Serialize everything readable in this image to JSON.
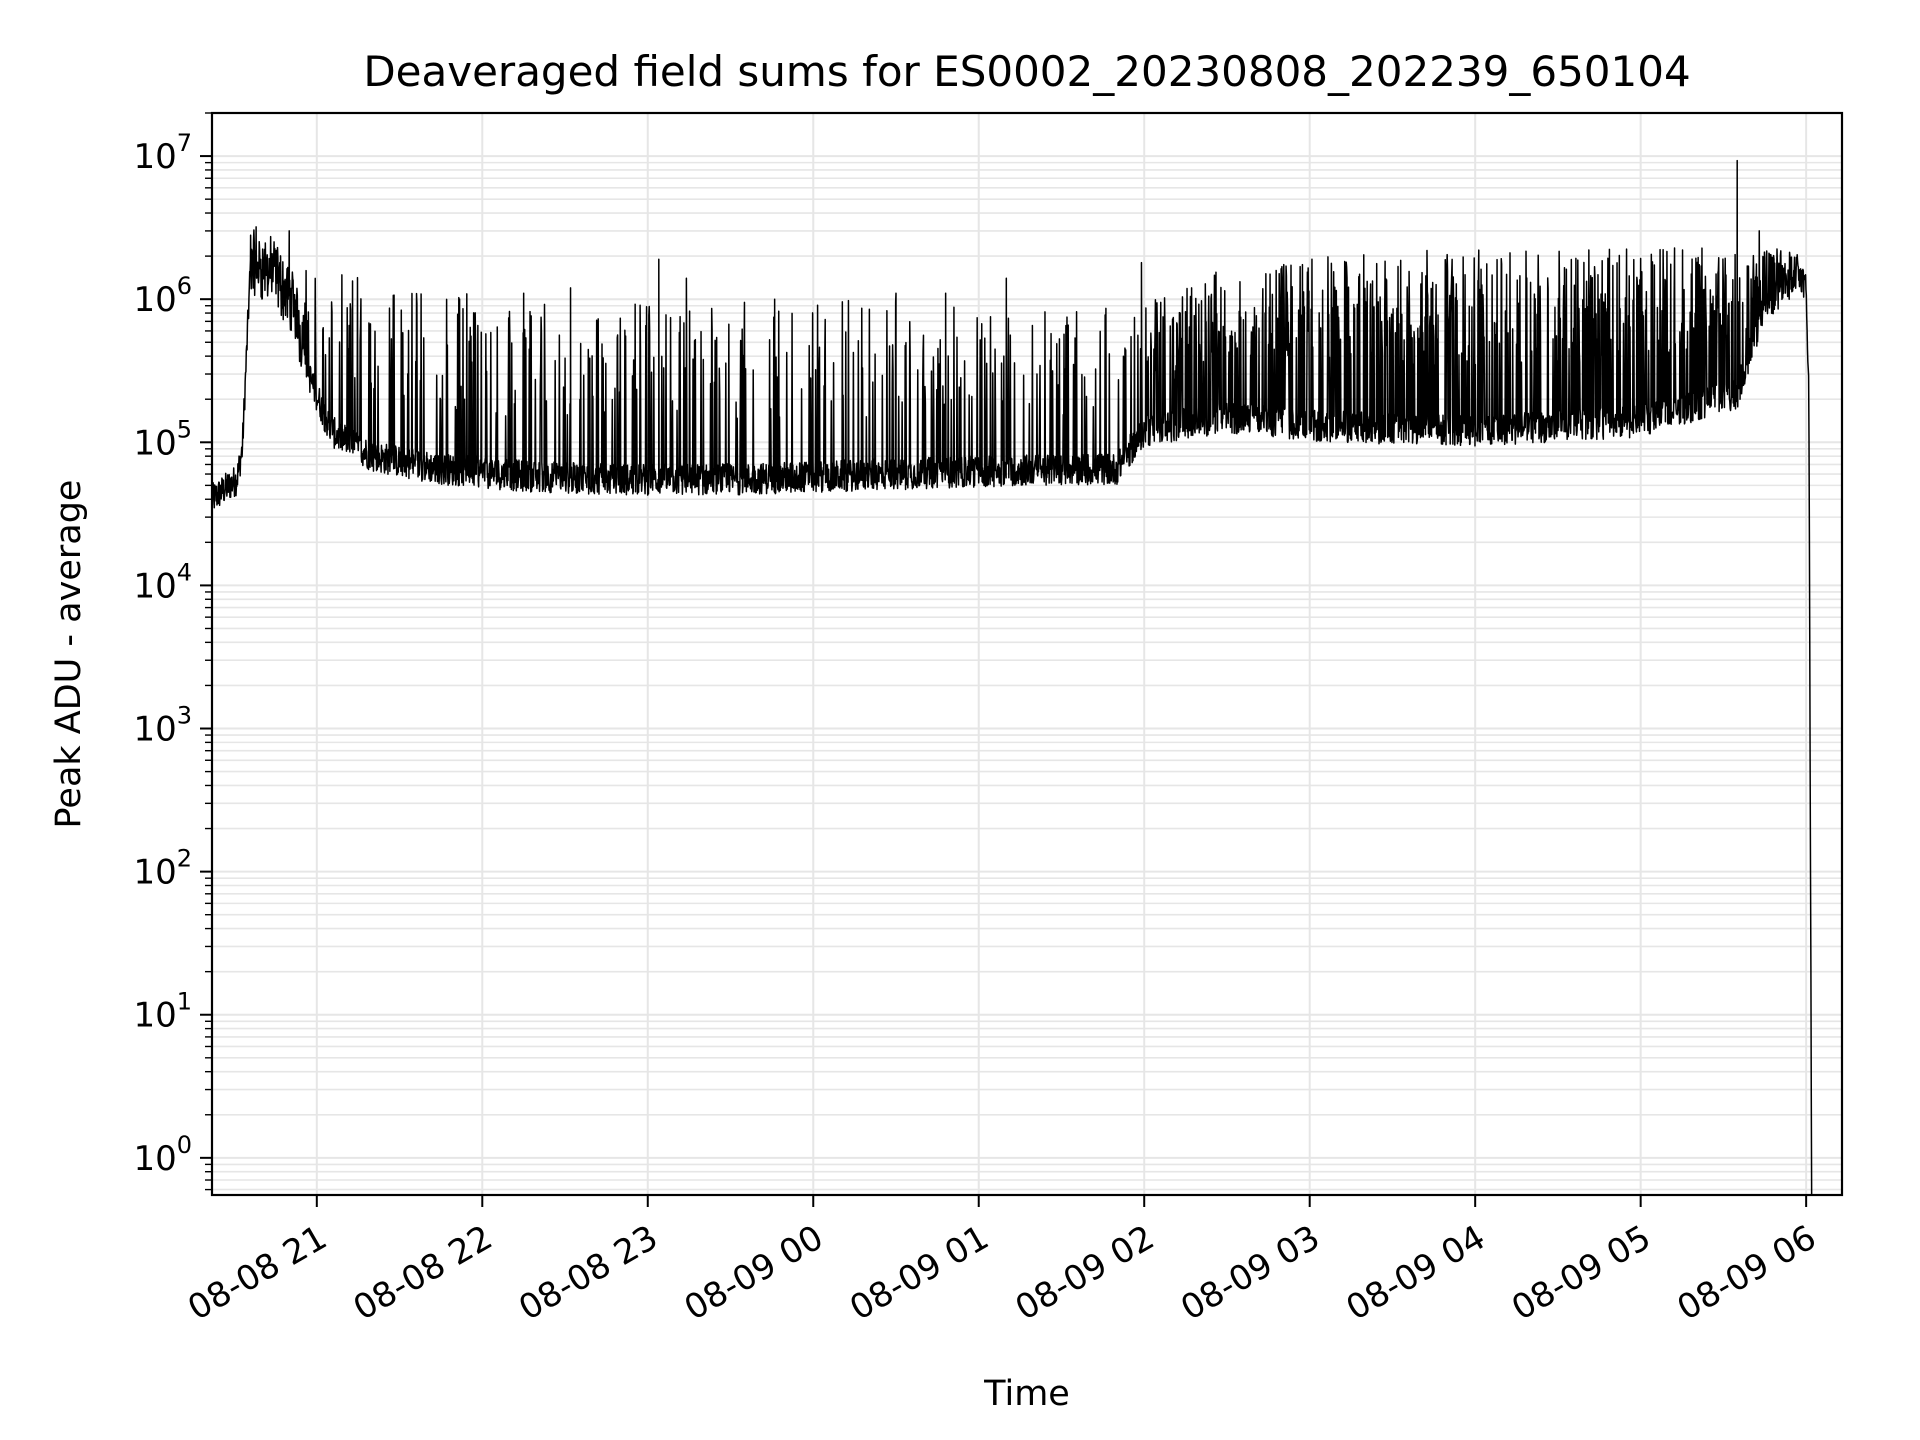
{
  "chart_data": {
    "type": "line",
    "title": "Deaveraged field sums for ES0002_20230808_202239_650104",
    "xlabel": "Time",
    "ylabel": "Peak ADU - average",
    "yscale": "log",
    "ylim": [
      0.55,
      20000000
    ],
    "xlim": [
      "2023-08-08 20:22",
      "2023-08-09 06:13"
    ],
    "grid": true,
    "grid_minor": true,
    "line_color": "#000000",
    "x_ticks": [
      {
        "value": "2023-08-08 21:00",
        "label": "08-08 21"
      },
      {
        "value": "2023-08-08 22:00",
        "label": "08-08 22"
      },
      {
        "value": "2023-08-08 23:00",
        "label": "08-08 23"
      },
      {
        "value": "2023-08-09 00:00",
        "label": "08-09 00"
      },
      {
        "value": "2023-08-09 01:00",
        "label": "08-09 01"
      },
      {
        "value": "2023-08-09 02:00",
        "label": "08-09 02"
      },
      {
        "value": "2023-08-09 03:00",
        "label": "08-09 03"
      },
      {
        "value": "2023-08-09 04:00",
        "label": "08-09 04"
      },
      {
        "value": "2023-08-09 05:00",
        "label": "08-09 05"
      },
      {
        "value": "2023-08-09 06:00",
        "label": "08-09 06"
      }
    ],
    "y_ticks": [
      {
        "value": 1,
        "base": "10",
        "exp": "0"
      },
      {
        "value": 10,
        "base": "10",
        "exp": "1"
      },
      {
        "value": 100,
        "base": "10",
        "exp": "2"
      },
      {
        "value": 1000,
        "base": "10",
        "exp": "3"
      },
      {
        "value": 10000,
        "base": "10",
        "exp": "4"
      },
      {
        "value": 100000,
        "base": "10",
        "exp": "5"
      },
      {
        "value": 1000000,
        "base": "10",
        "exp": "6"
      },
      {
        "value": 10000000,
        "base": "10",
        "exp": "7"
      }
    ],
    "series": [
      {
        "baseline": [
          [
            "2023-08-08 20:22",
            40000
          ],
          [
            "2023-08-08 20:31",
            55000
          ],
          [
            "2023-08-08 20:33",
            90000
          ],
          [
            "2023-08-08 20:36",
            1800000
          ],
          [
            "2023-08-08 20:45",
            1500000
          ],
          [
            "2023-08-08 20:52",
            900000
          ],
          [
            "2023-08-08 20:57",
            300000
          ],
          [
            "2023-08-08 21:05",
            120000
          ],
          [
            "2023-08-08 21:20",
            80000
          ],
          [
            "2023-08-08 21:45",
            65000
          ],
          [
            "2023-08-08 22:15",
            58000
          ],
          [
            "2023-08-08 22:45",
            55000
          ],
          [
            "2023-08-08 23:30",
            55000
          ],
          [
            "2023-08-09 00:30",
            60000
          ],
          [
            "2023-08-09 01:30",
            65000
          ],
          [
            "2023-08-09 01:50",
            65000
          ],
          [
            "2023-08-09 02:00",
            120000
          ],
          [
            "2023-08-09 02:30",
            150000
          ],
          [
            "2023-08-09 03:00",
            130000
          ],
          [
            "2023-08-09 04:00",
            120000
          ],
          [
            "2023-08-09 05:00",
            140000
          ],
          [
            "2023-08-09 05:35",
            220000
          ],
          [
            "2023-08-09 05:45",
            900000
          ],
          [
            "2023-08-09 05:58",
            1500000
          ],
          [
            "2023-08-09 06:00",
            1200000
          ],
          [
            "2023-08-09 06:01",
            200000
          ],
          [
            "2023-08-09 06:02",
            0.6
          ]
        ],
        "spike_envelope": [
          [
            "2023-08-08 20:55",
            1800000
          ],
          [
            "2023-08-08 21:30",
            1300000
          ],
          [
            "2023-08-08 22:30",
            900000
          ],
          [
            "2023-08-08 23:30",
            1000000
          ],
          [
            "2023-08-09 00:30",
            1000000
          ],
          [
            "2023-08-09 01:30",
            800000
          ],
          [
            "2023-08-09 01:55",
            900000
          ],
          [
            "2023-08-09 02:30",
            1700000
          ],
          [
            "2023-08-09 03:00",
            2000000
          ],
          [
            "2023-08-09 04:00",
            2300000
          ],
          [
            "2023-08-09 05:00",
            2300000
          ],
          [
            "2023-08-09 05:55",
            2300000
          ]
        ],
        "peaks": [
          [
            "2023-08-08 20:36",
            2800000
          ],
          [
            "2023-08-08 20:38",
            3200000
          ],
          [
            "2023-08-08 20:50",
            3000000
          ],
          [
            "2023-08-08 22:15",
            1100000
          ],
          [
            "2023-08-08 22:32",
            1200000
          ],
          [
            "2023-08-08 23:04",
            1900000
          ],
          [
            "2023-08-08 23:14",
            1400000
          ],
          [
            "2023-08-08 23:46",
            1000000
          ],
          [
            "2023-08-09 00:30",
            1100000
          ],
          [
            "2023-08-09 00:48",
            1100000
          ],
          [
            "2023-08-09 01:10",
            1400000
          ],
          [
            "2023-08-09 01:32",
            750000
          ],
          [
            "2023-08-09 01:59",
            1800000
          ],
          [
            "2023-08-09 05:35",
            9300000
          ],
          [
            "2023-08-09 05:43",
            3000000
          ]
        ]
      }
    ]
  }
}
